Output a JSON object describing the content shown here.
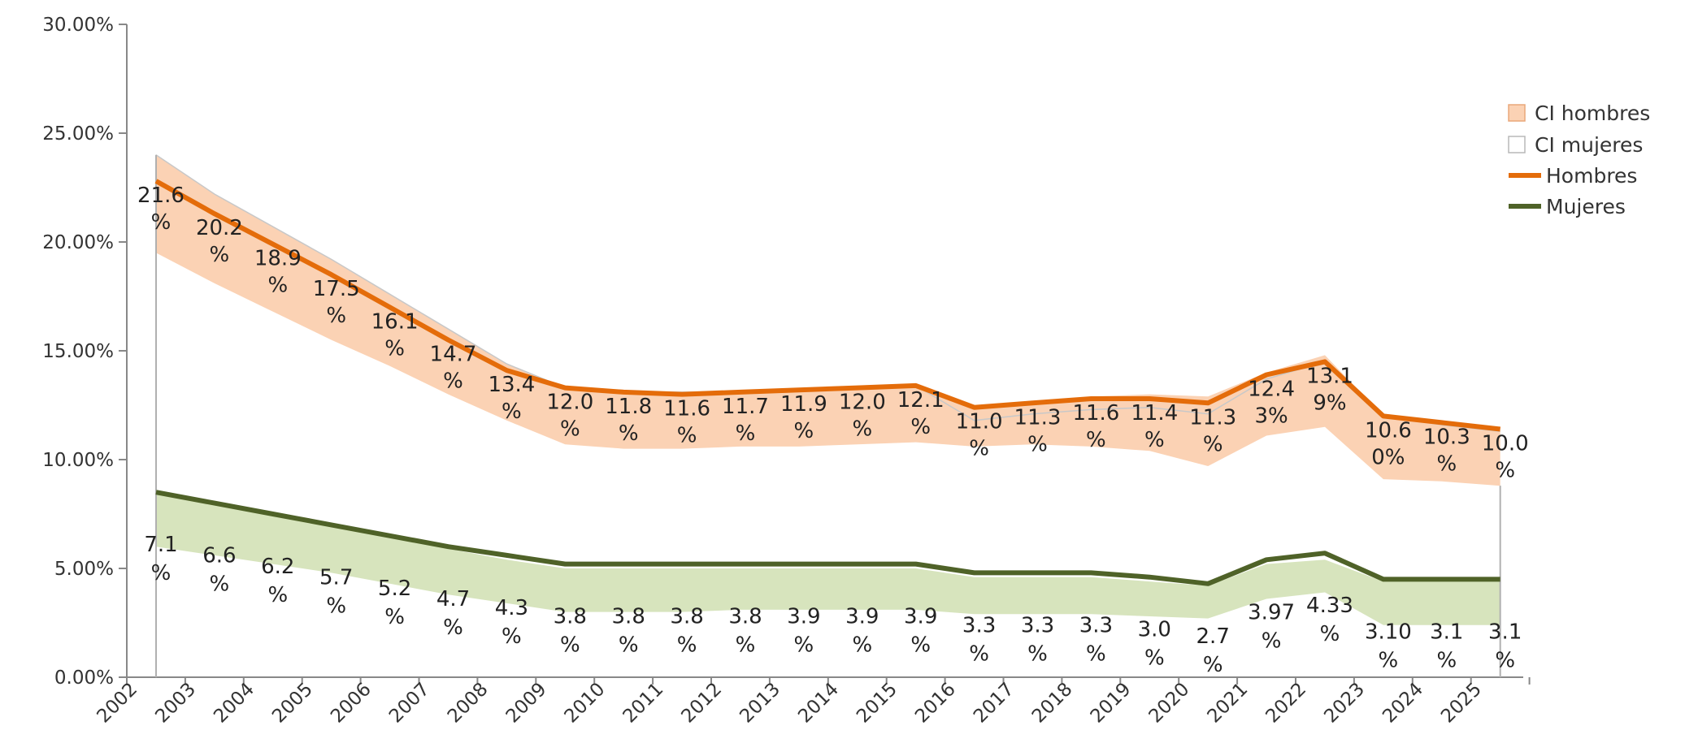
{
  "chart_data": {
    "type": "line",
    "title": "",
    "xlabel": "",
    "ylabel": "",
    "ylim": [
      0,
      0.3
    ],
    "y_ticks": [
      "0.00%",
      "5.00%",
      "10.00%",
      "15.00%",
      "20.00%",
      "25.00%",
      "30.00%"
    ],
    "categories": [
      "2002",
      "2003",
      "2004",
      "2005",
      "2006",
      "2007",
      "2008",
      "2009",
      "2010",
      "2011",
      "2012",
      "2013",
      "2014",
      "2015",
      "2016",
      "2017",
      "2018",
      "2019",
      "2020",
      "2021",
      "2022",
      "2023",
      "2024",
      "2025"
    ],
    "legend_position": "top-right",
    "grid": false,
    "series": [
      {
        "name": "Hombres",
        "color": "#e46c0a",
        "values": [
          0.228,
          0.213,
          0.199,
          0.185,
          0.17,
          0.155,
          0.141,
          0.133,
          0.131,
          0.13,
          0.131,
          0.132,
          0.133,
          0.134,
          0.124,
          0.126,
          0.128,
          0.128,
          0.126,
          0.139,
          0.145,
          0.12,
          0.117,
          0.114
        ],
        "labels": [
          [
            "21.6",
            "%"
          ],
          [
            "20.2",
            "%"
          ],
          [
            "18.9",
            "%"
          ],
          [
            "17.5",
            "%"
          ],
          [
            "16.1",
            "%"
          ],
          [
            "14.7",
            "%"
          ],
          [
            "13.4",
            "%"
          ],
          [
            "12.0",
            "%"
          ],
          [
            "11.8",
            "%"
          ],
          [
            "11.6",
            "%"
          ],
          [
            "11.7",
            "%"
          ],
          [
            "11.9",
            "%"
          ],
          [
            "12.0",
            "%"
          ],
          [
            "12.1",
            "%"
          ],
          [
            "11.0",
            "%"
          ],
          [
            "11.3",
            "%"
          ],
          [
            "11.6",
            "%"
          ],
          [
            "11.4",
            "%"
          ],
          [
            "11.3",
            "%"
          ],
          [
            "12.4",
            "3%"
          ],
          [
            "13.1",
            "9%"
          ],
          [
            "10.6",
            "0%"
          ],
          [
            "10.3",
            "%"
          ],
          [
            "10.0",
            "%"
          ]
        ]
      },
      {
        "name": "Mujeres",
        "color": "#4f6228",
        "values": [
          0.085,
          0.08,
          0.075,
          0.07,
          0.065,
          0.06,
          0.056,
          0.052,
          0.052,
          0.052,
          0.052,
          0.052,
          0.052,
          0.052,
          0.048,
          0.048,
          0.048,
          0.046,
          0.043,
          0.054,
          0.057,
          0.045,
          0.045,
          0.045
        ],
        "labels": [
          [
            "7.1",
            "%"
          ],
          [
            "6.6",
            "%"
          ],
          [
            "6.2",
            "%"
          ],
          [
            "5.7",
            "%"
          ],
          [
            "5.2",
            "%"
          ],
          [
            "4.7",
            "%"
          ],
          [
            "4.3",
            "%"
          ],
          [
            "3.8",
            "%"
          ],
          [
            "3.8",
            "%"
          ],
          [
            "3.8",
            "%"
          ],
          [
            "3.8",
            "%"
          ],
          [
            "3.9",
            "%"
          ],
          [
            "3.9",
            "%"
          ],
          [
            "3.9",
            "%"
          ],
          [
            "3.3",
            "%"
          ],
          [
            "3.3",
            "%"
          ],
          [
            "3.3",
            "%"
          ],
          [
            "3.0",
            "%"
          ],
          [
            "2.7",
            "%"
          ],
          [
            "3.97",
            "%"
          ],
          [
            "4.33",
            "%"
          ],
          [
            "3.10",
            "%"
          ],
          [
            "3.1",
            "%"
          ],
          [
            "3.1",
            "%"
          ]
        ]
      }
    ],
    "bands": [
      {
        "name": "CI hombres",
        "color": "#fbd2b4",
        "upper": [
          0.24,
          0.222,
          0.207,
          0.192,
          0.176,
          0.16,
          0.144,
          0.133,
          0.131,
          0.131,
          0.131,
          0.132,
          0.134,
          0.135,
          0.125,
          0.126,
          0.129,
          0.13,
          0.129,
          0.14,
          0.148,
          0.12,
          0.116,
          0.113
        ],
        "lower": [
          0.195,
          0.181,
          0.168,
          0.155,
          0.143,
          0.13,
          0.118,
          0.107,
          0.105,
          0.105,
          0.106,
          0.106,
          0.107,
          0.108,
          0.106,
          0.107,
          0.106,
          0.104,
          0.097,
          0.111,
          0.115,
          0.091,
          0.09,
          0.088
        ]
      },
      {
        "name": "CI mujeres",
        "color": "#ffffff",
        "upper": [
          0.24,
          0.222,
          0.207,
          0.192,
          0.176,
          0.16,
          0.144,
          0.133,
          0.131,
          0.131,
          0.131,
          0.132,
          0.133,
          0.134,
          0.118,
          0.121,
          0.123,
          0.124,
          0.121,
          0.137,
          0.145,
          0.12,
          0.116,
          0.113
        ],
        "lower": [
          0.24,
          0.222,
          0.207,
          0.192,
          0.176,
          0.16,
          0.144,
          0.133,
          0.131,
          0.131,
          0.131,
          0.132,
          0.133,
          0.134,
          0.118,
          0.121,
          0.123,
          0.124,
          0.121,
          0.137,
          0.145,
          0.12,
          0.116,
          0.113
        ]
      },
      {
        "name": "",
        "color": "#d7e4bd",
        "upper": [
          0.084,
          0.079,
          0.074,
          0.069,
          0.064,
          0.059,
          0.054,
          0.05,
          0.05,
          0.05,
          0.05,
          0.05,
          0.05,
          0.05,
          0.046,
          0.046,
          0.046,
          0.044,
          0.042,
          0.052,
          0.054,
          0.044,
          0.044,
          0.044
        ],
        "lower": [
          0.06,
          0.056,
          0.052,
          0.048,
          0.043,
          0.038,
          0.034,
          0.03,
          0.03,
          0.03,
          0.031,
          0.031,
          0.031,
          0.031,
          0.029,
          0.029,
          0.029,
          0.028,
          0.027,
          0.036,
          0.039,
          0.024,
          0.024,
          0.024
        ]
      }
    ]
  }
}
